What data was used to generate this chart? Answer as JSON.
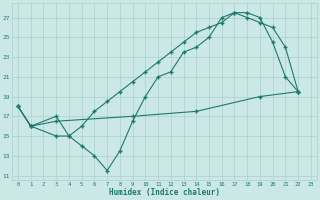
{
  "line1_x": [
    0,
    1,
    3,
    4,
    5,
    6,
    7,
    8,
    9,
    10,
    11,
    12,
    13,
    14,
    15,
    16,
    17,
    18,
    19,
    20,
    21,
    22
  ],
  "line1_y": [
    18.0,
    16.0,
    17.0,
    15.0,
    14.0,
    13.0,
    11.5,
    13.5,
    16.5,
    19.0,
    21.0,
    21.5,
    23.5,
    24.0,
    25.0,
    27.0,
    27.5,
    27.5,
    27.0,
    24.5,
    21.0,
    19.5
  ],
  "line2_x": [
    0,
    1,
    3,
    4,
    5,
    6,
    7,
    8,
    9,
    10,
    11,
    12,
    13,
    14,
    15,
    16,
    17,
    18,
    19,
    20,
    21,
    22
  ],
  "line2_y": [
    18.0,
    16.0,
    15.0,
    15.0,
    16.0,
    17.5,
    18.5,
    19.5,
    20.5,
    21.5,
    22.5,
    23.5,
    24.5,
    25.5,
    26.0,
    26.5,
    27.5,
    27.0,
    26.5,
    26.0,
    24.0,
    19.5
  ],
  "line3_x": [
    0,
    1,
    3,
    9,
    14,
    19,
    22
  ],
  "line3_y": [
    18.0,
    16.0,
    16.5,
    17.0,
    17.5,
    19.0,
    19.5
  ],
  "xlabel": "Humidex (Indice chaleur)",
  "yticks": [
    11,
    13,
    15,
    17,
    19,
    21,
    23,
    25,
    27
  ],
  "xtick_labels": [
    "0",
    "1",
    "2",
    "3",
    "4",
    "5",
    "6",
    "7",
    "8",
    "9",
    "10",
    "11",
    "12",
    "13",
    "14",
    "15",
    "16",
    "17",
    "18",
    "19",
    "20",
    "21",
    "22",
    "23"
  ],
  "xtick_vals": [
    0,
    1,
    2,
    3,
    4,
    5,
    6,
    7,
    8,
    9,
    10,
    11,
    12,
    13,
    14,
    15,
    16,
    17,
    18,
    19,
    20,
    21,
    22,
    23
  ],
  "ylim": [
    10.5,
    28.5
  ],
  "xlim": [
    -0.5,
    23.5
  ],
  "line_color": "#1a7a6e",
  "bg_color": "#cce8e6",
  "grid_color": "#aad0cc"
}
